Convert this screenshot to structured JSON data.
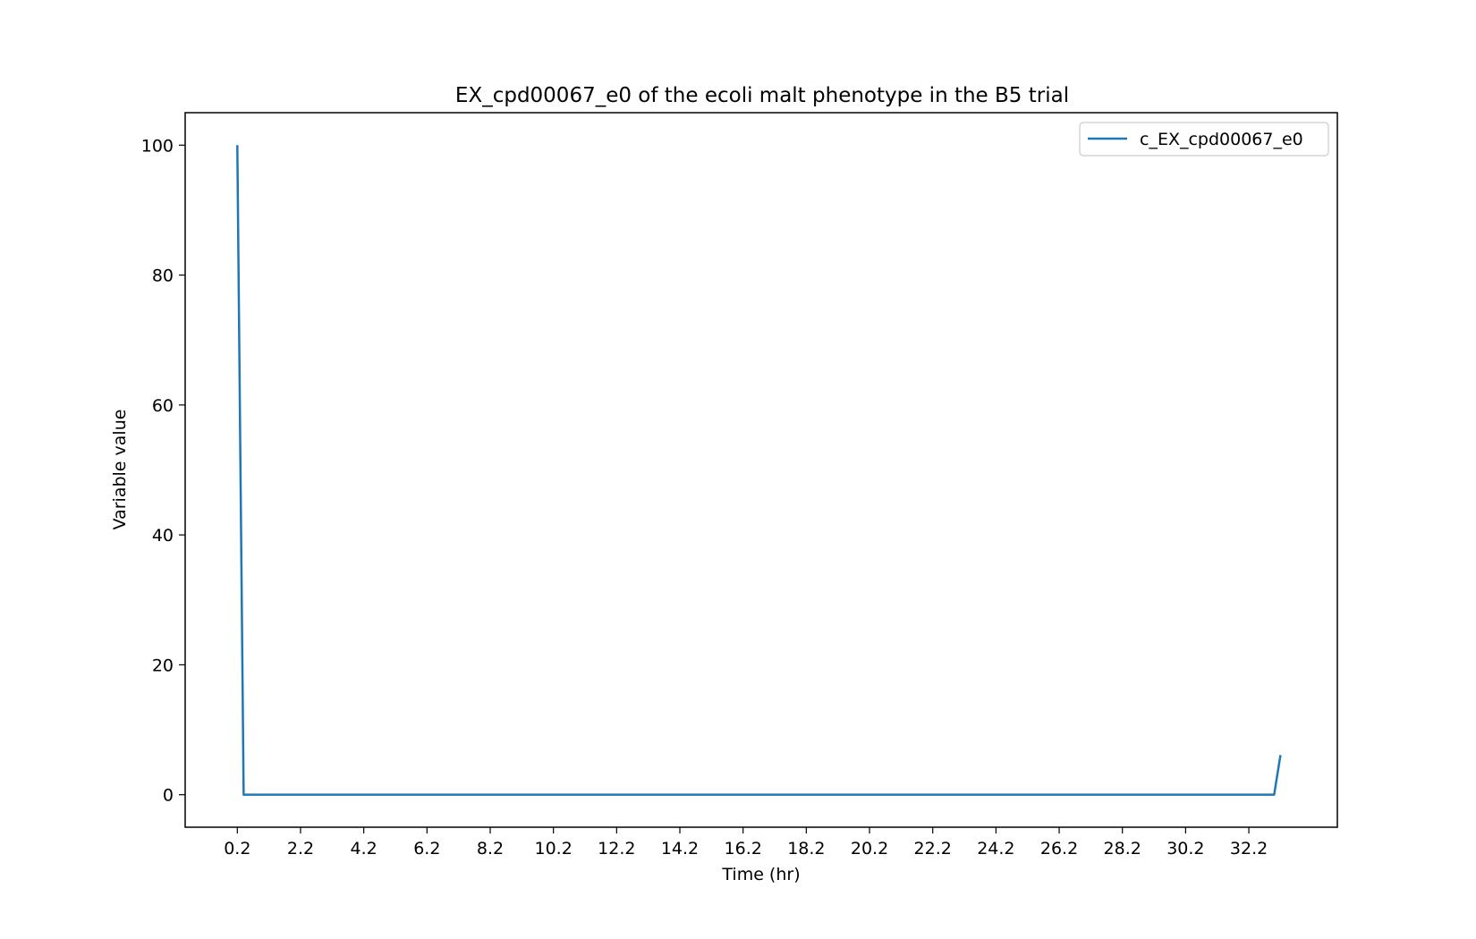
{
  "chart_data": {
    "type": "line",
    "title": "EX_cpd00067_e0 of the ecoli malt phenotype in the B5 trial",
    "xlabel": "Time (hr)",
    "ylabel": "Variable value",
    "xticks": [
      "0.2",
      "2.2",
      "4.2",
      "6.2",
      "8.2",
      "10.2",
      "12.2",
      "14.2",
      "16.2",
      "18.2",
      "20.2",
      "22.2",
      "24.2",
      "26.2",
      "28.2",
      "30.2",
      "32.2"
    ],
    "yticks": [
      "0",
      "20",
      "40",
      "60",
      "80",
      "100"
    ],
    "xlim": [
      -1.45,
      35.0
    ],
    "ylim": [
      -5.0,
      105.0
    ],
    "grid": false,
    "legend_position": "top-right",
    "series": [
      {
        "name": "c_EX_cpd00067_e0",
        "color": "#1f77b4",
        "x": [
          0.2,
          0.4,
          33.0,
          33.2
        ],
        "y": [
          100.0,
          0.0,
          0.0,
          6.1
        ]
      }
    ]
  }
}
